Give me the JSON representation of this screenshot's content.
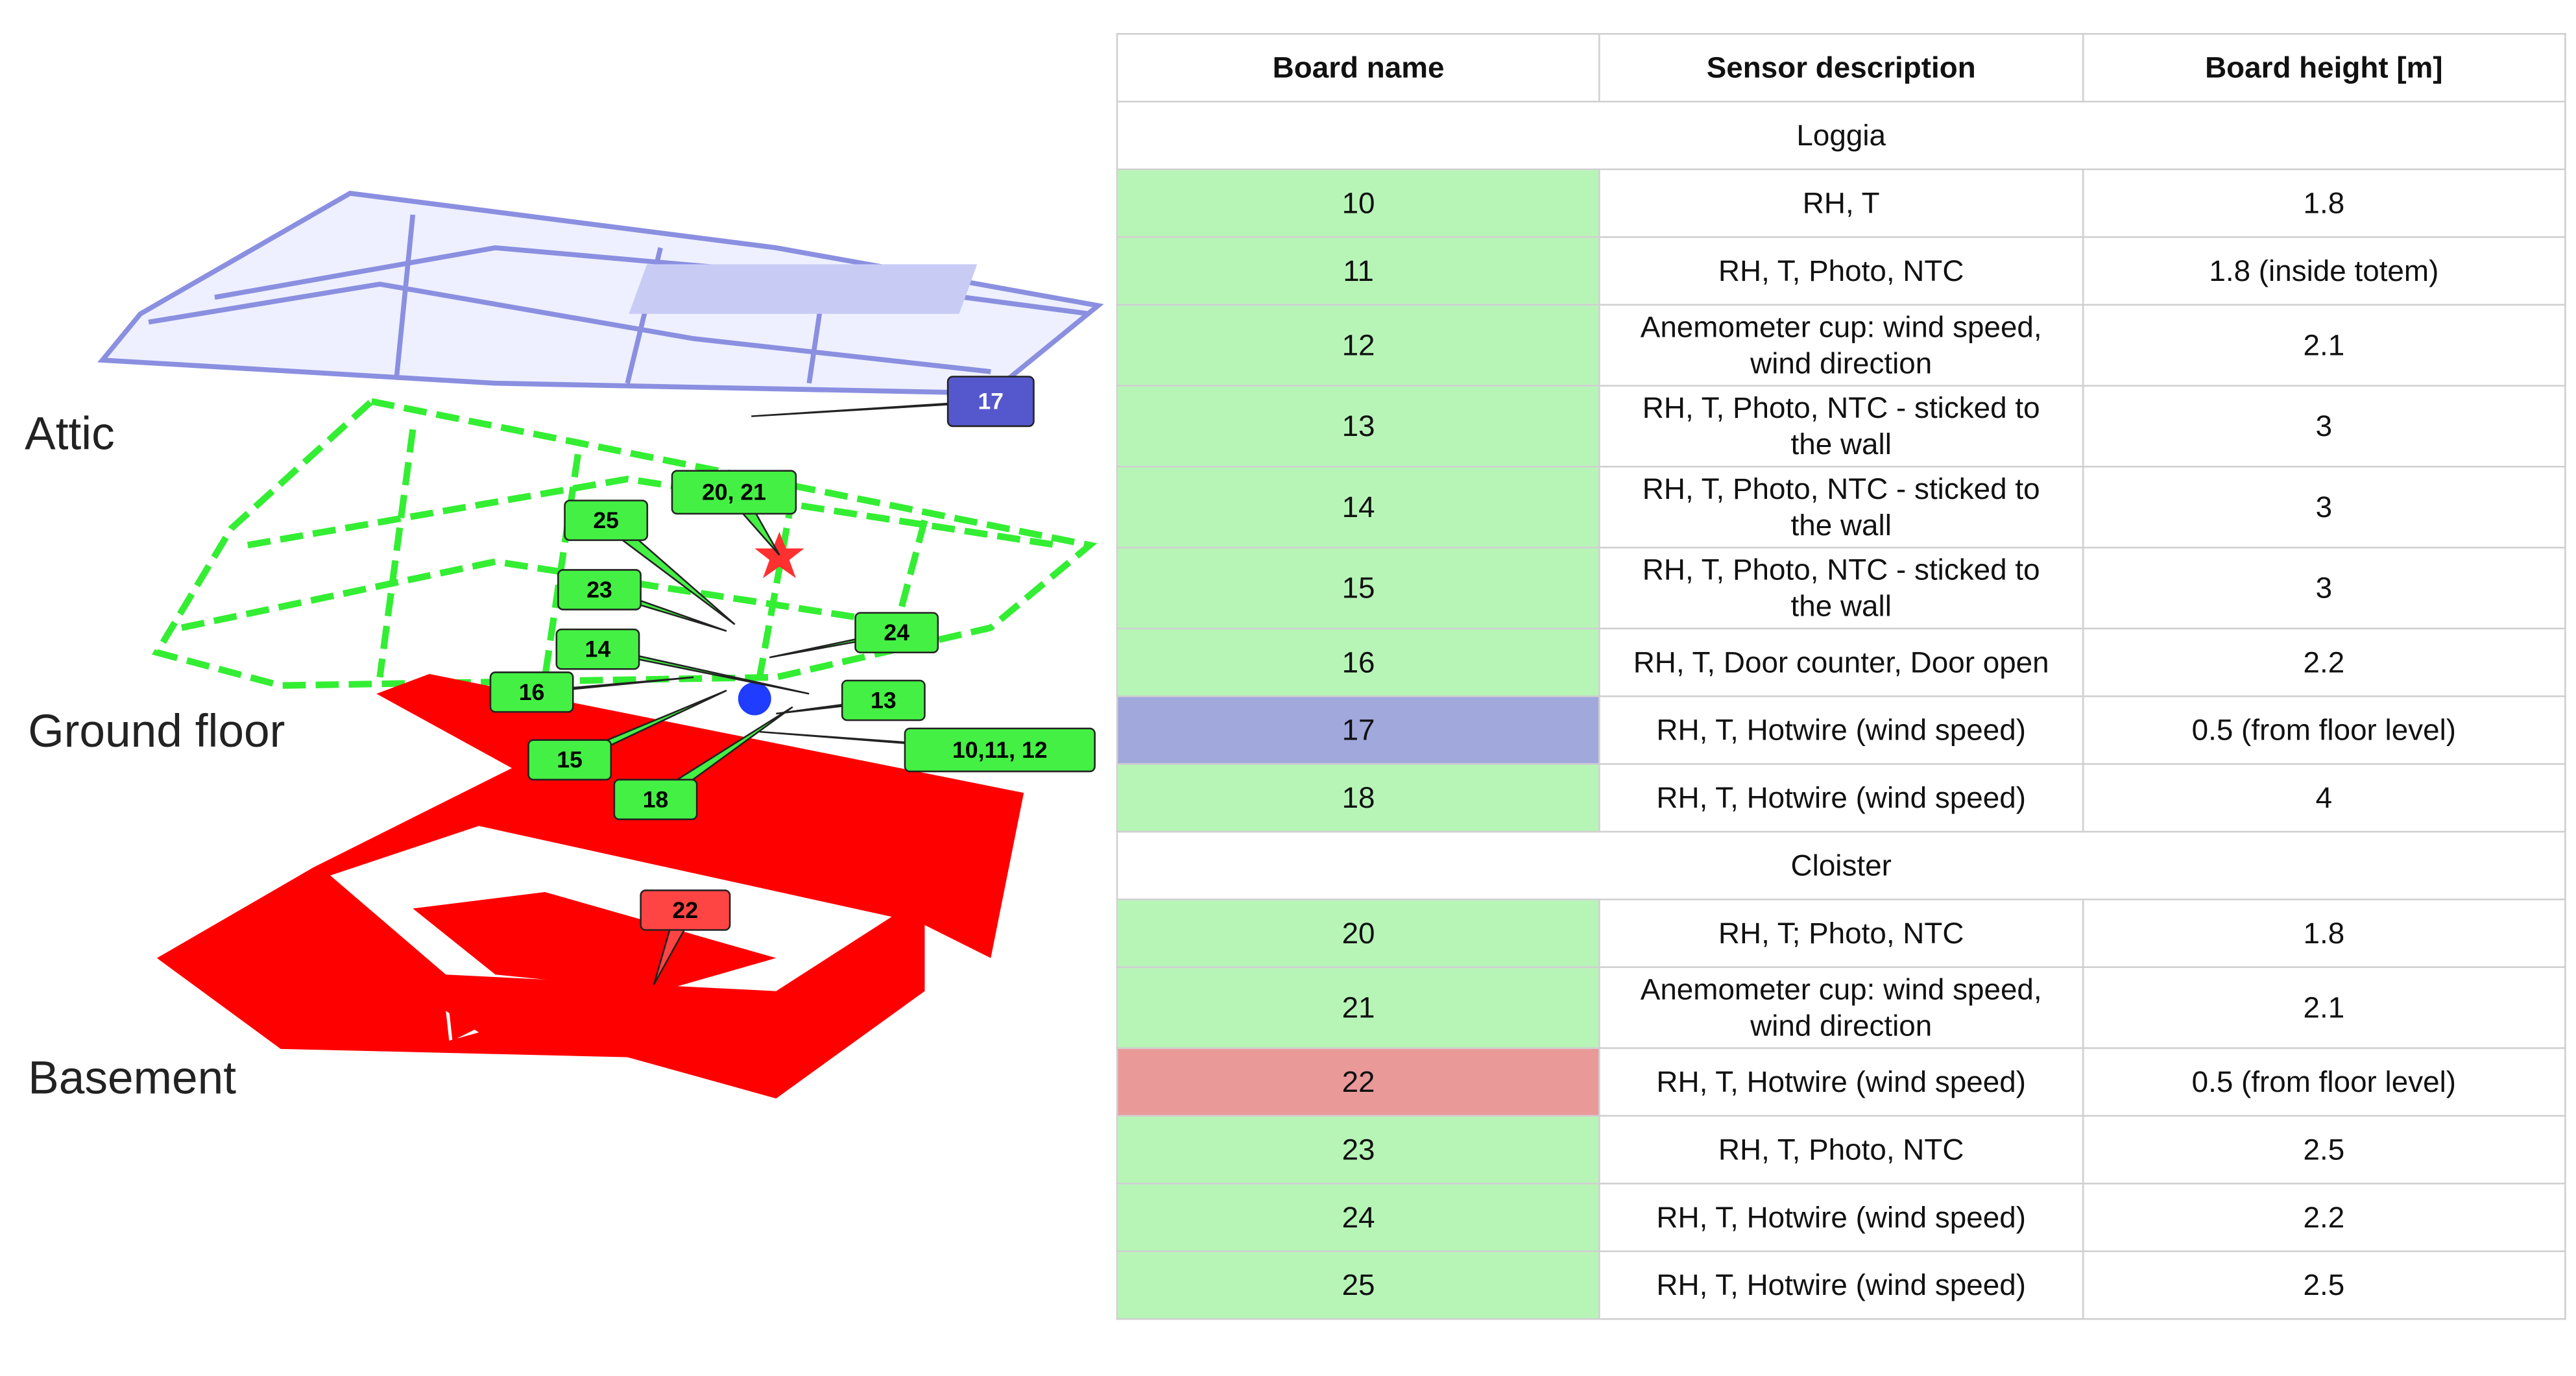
{
  "diagram": {
    "levels": [
      "Attic",
      "Ground floor",
      "Basement"
    ],
    "callouts": [
      "17",
      "20, 21",
      "25",
      "23",
      "24",
      "14",
      "16",
      "13",
      "15",
      "10,11, 12",
      "18",
      "22"
    ]
  },
  "table": {
    "header": [
      "Board name",
      "Sensor description",
      "Board height [m]"
    ],
    "sections": [
      {
        "title": "Loggia",
        "rows": [
          [
            "10",
            "RH, T",
            "1.8"
          ],
          [
            "11",
            "RH, T, Photo, NTC",
            "1.8 (inside totem)"
          ],
          [
            "12",
            "Anemometer cup: wind speed, wind direction",
            "2.1"
          ],
          [
            "13",
            "RH, T, Photo,  NTC - sticked to the wall",
            "3"
          ],
          [
            "14",
            "RH, T, Photo,  NTC - sticked to the wall",
            "3"
          ],
          [
            "15",
            "RH, T, Photo,  NTC - sticked to the wall",
            "3"
          ],
          [
            "16",
            "RH, T, Door counter, Door open",
            "2.2"
          ],
          [
            "17",
            "RH, T, Hotwire (wind speed)",
            "0.5 (from floor level)"
          ],
          [
            "18",
            "RH, T, Hotwire (wind speed)",
            "4"
          ]
        ]
      },
      {
        "title": "Cloister",
        "rows": [
          [
            "20",
            "RH, T; Photo, NTC",
            "1.8"
          ],
          [
            "21",
            "Anemometer cup: wind speed, wind direction",
            "2.1"
          ],
          [
            "22",
            "RH, T, Hotwire (wind speed)",
            "0.5 (from floor level)"
          ],
          [
            "23",
            "RH, T, Photo, NTC",
            "2.5"
          ],
          [
            "24",
            "RH, T, Hotwire (wind speed)",
            "2.2"
          ],
          [
            "25",
            "RH, T, Hotwire (wind speed)",
            "2.5"
          ]
        ]
      }
    ]
  }
}
